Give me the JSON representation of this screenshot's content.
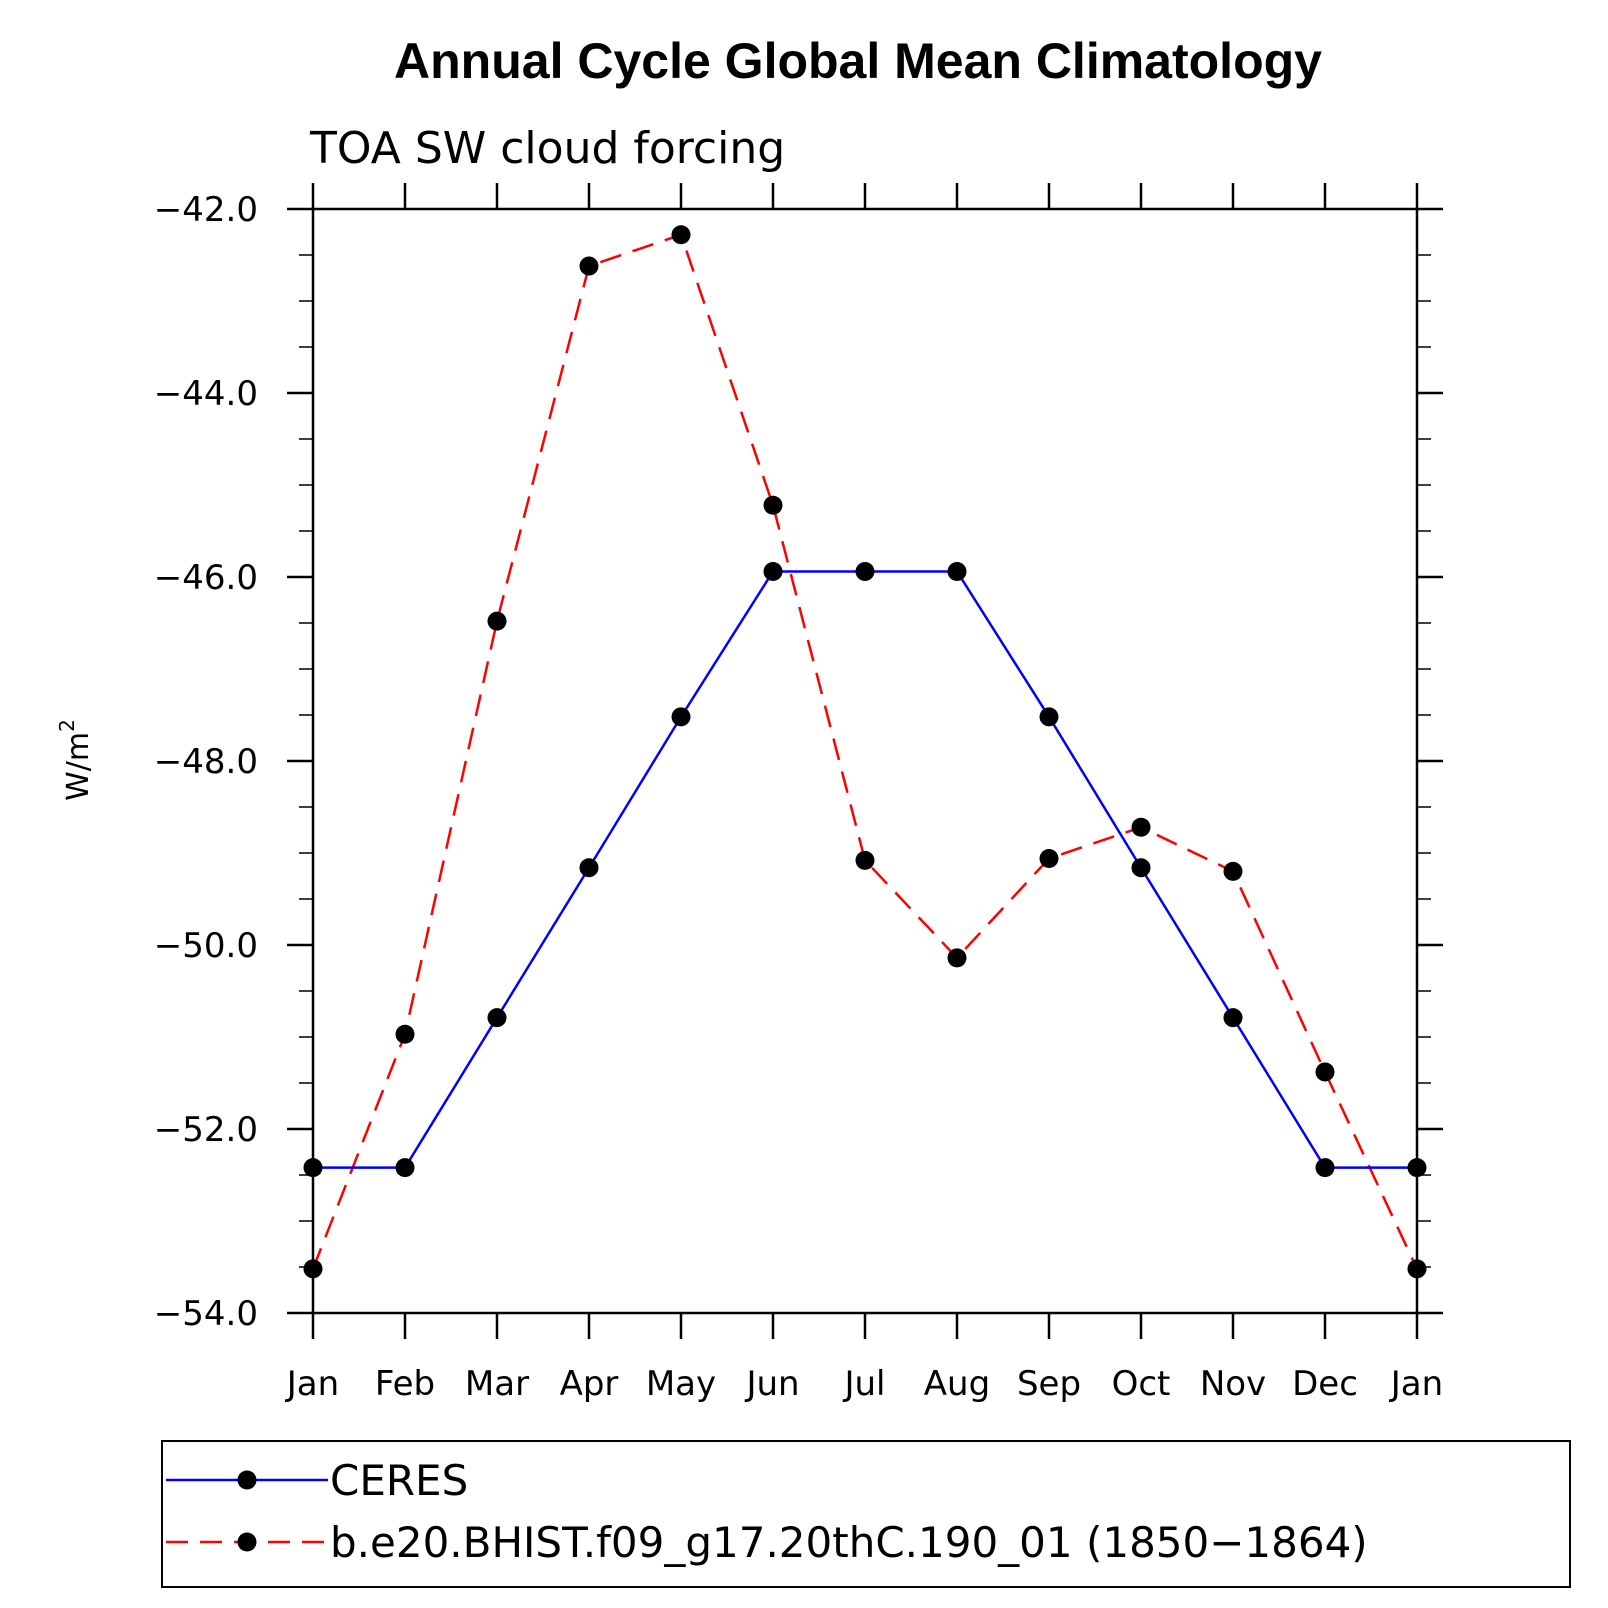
{
  "chart_data": {
    "type": "line",
    "title": "Annual Cycle Global Mean Climatology",
    "subtitle": "TOA SW cloud forcing",
    "ylabel": "W/m",
    "ylabel_sup": "2",
    "xlabel": "",
    "categories": [
      "Jan",
      "Feb",
      "Mar",
      "Apr",
      "May",
      "Jun",
      "Jul",
      "Aug",
      "Sep",
      "Oct",
      "Nov",
      "Dec",
      "Jan"
    ],
    "ylim": [
      -54.0,
      -42.0
    ],
    "yticks": [
      "-42.0",
      "-44.0",
      "-46.0",
      "-48.0",
      "-50.0",
      "-52.0",
      "-54.0"
    ],
    "grid": false,
    "legend_position": "bottom",
    "series": [
      {
        "name": "CERES",
        "color": "#0000ff",
        "style": "solid",
        "marker": "filled-circle",
        "values": [
          -52.42,
          -52.42,
          -50.79,
          -49.16,
          -47.52,
          -45.94,
          -45.94,
          -45.94,
          -47.52,
          -49.16,
          -50.79,
          -52.42,
          -52.42
        ]
      },
      {
        "name": "b.e20.BHIST.f09_g17.20thC.190_01 (1850-1864)",
        "color": "#ff0000",
        "style": "dashed",
        "marker": "filled-circle",
        "values": [
          -53.52,
          -50.97,
          -46.48,
          -42.62,
          -42.28,
          -45.22,
          -49.08,
          -50.14,
          -49.06,
          -48.72,
          -49.2,
          -51.38,
          -53.52
        ]
      }
    ]
  }
}
